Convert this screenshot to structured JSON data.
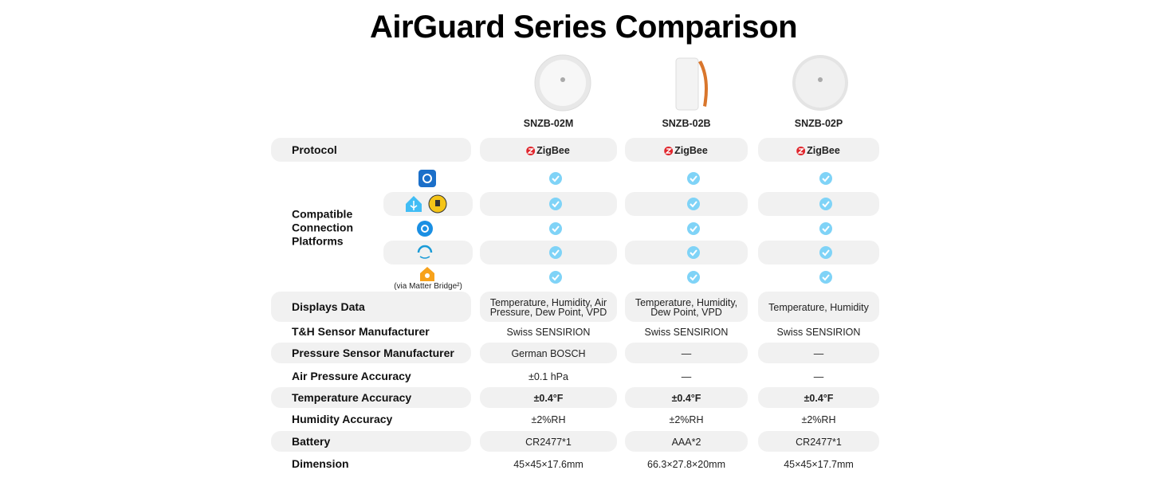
{
  "header": {
    "title": "AirGuard Series Comparison"
  },
  "products": [
    "SNZB-02M",
    "SNZB-02B",
    "SNZB-02P"
  ],
  "protocol": {
    "label": "Protocol",
    "values": [
      "ZigBee",
      "ZigBee",
      "ZigBee"
    ]
  },
  "platforms": {
    "label": "Compatible Connection Platforms",
    "note": "(via Matter Bridge²)"
  },
  "rows": [
    {
      "label": "Displays Data",
      "values": [
        "Temperature, Humidity, Air Pressure, Dew Point, VPD",
        "Temperature, Humidity, Dew Point, VPD",
        "Temperature, Humidity"
      ]
    },
    {
      "label": "T&H Sensor Manufacturer",
      "values": [
        "Swiss SENSIRION",
        "Swiss SENSIRION",
        "Swiss SENSIRION"
      ]
    },
    {
      "label": "Pressure Sensor Manufacturer",
      "values": [
        "German BOSCH",
        "—",
        "—"
      ]
    },
    {
      "label": "Air Pressure Accuracy",
      "values": [
        "±0.1 hPa",
        "—",
        "—"
      ]
    },
    {
      "label": "Temperature Accuracy",
      "values": [
        "±0.4°F",
        "±0.4°F",
        "±0.4°F"
      ]
    },
    {
      "label": "Humidity Accuracy",
      "values": [
        "±2%RH",
        "±2%RH",
        "±2%RH"
      ]
    },
    {
      "label": "Battery",
      "values": [
        "CR2477*1",
        "AAA*2",
        "CR2477*1"
      ]
    },
    {
      "label": "Dimension",
      "values": [
        "45×45×17.6mm",
        "66.3×27.8×20mm",
        "45×45×17.7mm"
      ]
    }
  ]
}
